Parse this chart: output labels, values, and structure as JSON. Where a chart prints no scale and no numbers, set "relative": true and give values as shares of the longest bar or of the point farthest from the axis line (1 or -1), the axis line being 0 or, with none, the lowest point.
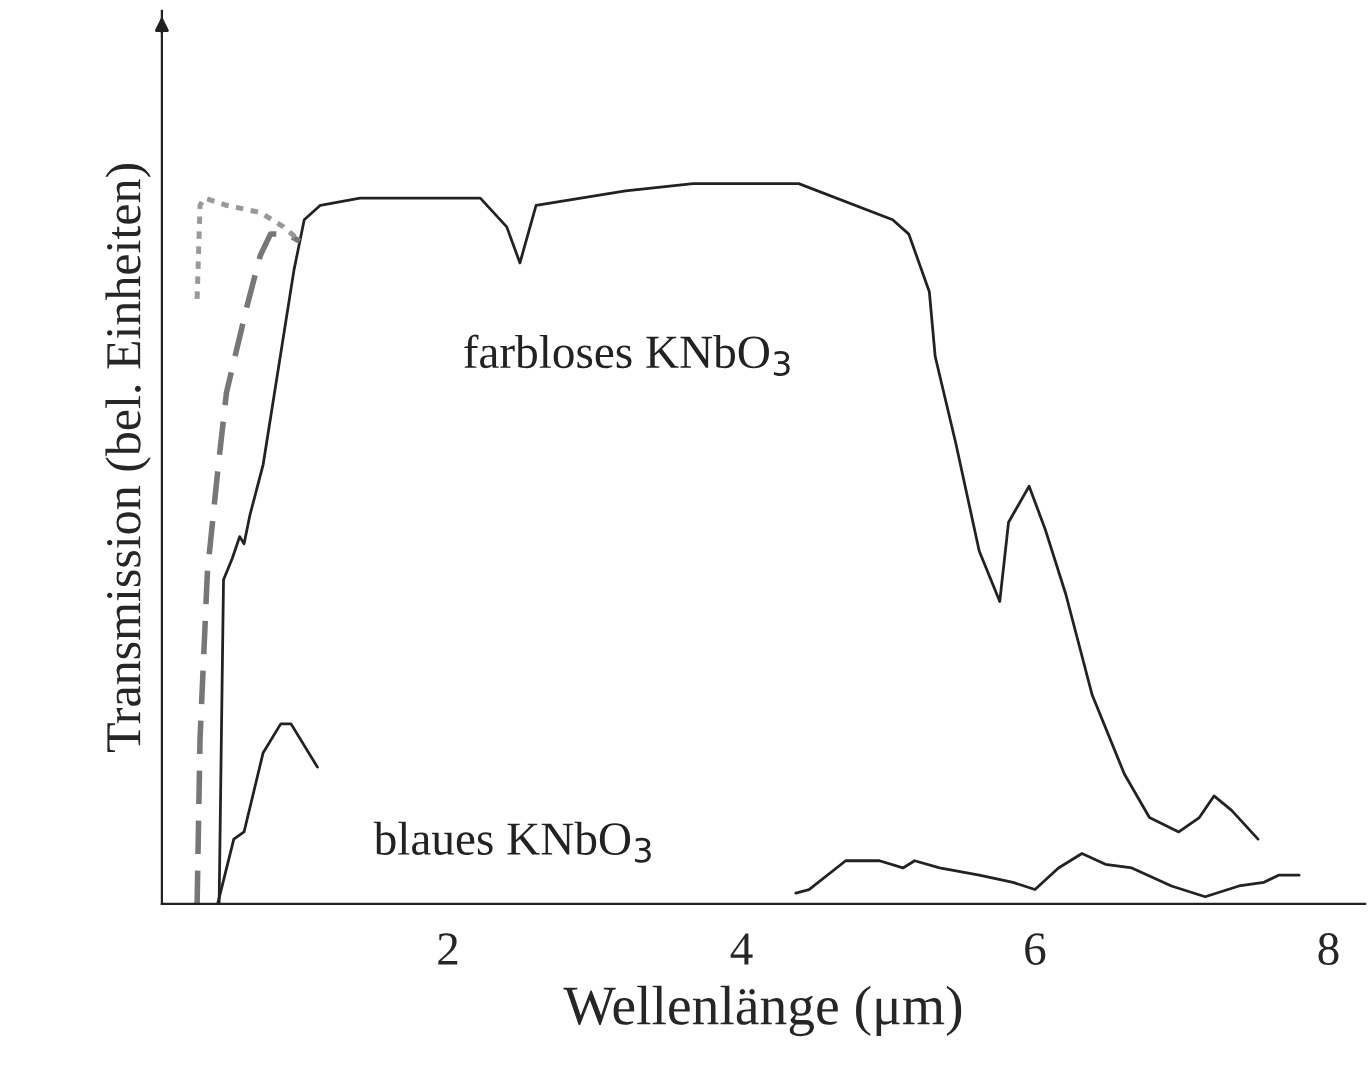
{
  "chart_data": {
    "type": "line",
    "relative": true,
    "xlabel": "Wellenlänge (μm)",
    "ylabel": "Transmission (bel. Einheiten)",
    "xlim": [
      0.05,
      8.25
    ],
    "xticks": [
      2,
      4,
      6,
      8
    ],
    "grid": false,
    "legend": false,
    "tick_labels": "x",
    "series": [
      {
        "name": "farbloses KNbO$_{3}$",
        "color": "#222222",
        "line_style": "solid",
        "x": [
          0.44,
          0.47,
          0.53,
          0.58,
          0.61,
          0.65,
          0.74,
          0.95,
          1.02,
          1.13,
          1.4,
          2.22,
          2.4,
          2.49,
          2.6,
          3.21,
          3.67,
          4.12,
          4.39,
          5.03,
          5.14,
          5.28,
          5.32,
          5.46,
          5.62,
          5.76,
          5.82,
          5.96,
          6.07,
          6.21,
          6.39,
          6.61,
          6.78,
          6.98,
          7.12,
          7.22,
          7.34,
          7.52
        ],
        "values": [
          0,
          0.45,
          0.48,
          0.51,
          0.5,
          0.54,
          0.61,
          0.88,
          0.95,
          0.97,
          0.98,
          0.98,
          0.94,
          0.89,
          0.97,
          0.99,
          1,
          1,
          1,
          0.95,
          0.93,
          0.85,
          0.76,
          0.64,
          0.49,
          0.42,
          0.53,
          0.58,
          0.52,
          0.43,
          0.29,
          0.18,
          0.12,
          0.1,
          0.12,
          0.15,
          0.13,
          0.09
        ]
      },
      {
        "color": "#777777",
        "line_style": "dashed",
        "x": [
          0.29,
          0.31,
          0.36,
          0.43,
          0.49,
          0.63,
          0.72,
          0.79,
          0.9,
          0.99
        ],
        "values": [
          0,
          0.23,
          0.46,
          0.6,
          0.71,
          0.83,
          0.9,
          0.93,
          0.93,
          0.92
        ]
      },
      {
        "color": "#999999",
        "line_style": "dotted",
        "x": [
          0.29,
          0.31,
          0.34,
          0.49,
          0.72,
          0.88,
          0.99
        ],
        "values": [
          0.84,
          0.97,
          0.98,
          0.97,
          0.96,
          0.94,
          0.92
        ]
      },
      {
        "name": "blaues KNbO$_{3}$",
        "color": "#222222",
        "line_style": "solid",
        "x": [
          0.43,
          0.54,
          0.61,
          0.74,
          0.86,
          0.93,
          1.11,
          2.5,
          4.37,
          4.46,
          4.71,
          4.94,
          5.1,
          5.18,
          5.35,
          5.62,
          5.85,
          6.0,
          6.16,
          6.32,
          6.48,
          6.66,
          6.93,
          7.16,
          7.39,
          7.56,
          7.66,
          7.8
        ],
        "values": [
          0,
          0.09,
          0.1,
          0.21,
          0.25,
          0.25,
          0.19,
          null,
          0.015,
          0.02,
          0.06,
          0.06,
          0.05,
          0.06,
          0.05,
          0.04,
          0.03,
          0.02,
          0.05,
          0.07,
          0.055,
          0.05,
          0.025,
          0.01,
          0.025,
          0.03,
          0.04,
          0.04
        ]
      }
    ]
  }
}
